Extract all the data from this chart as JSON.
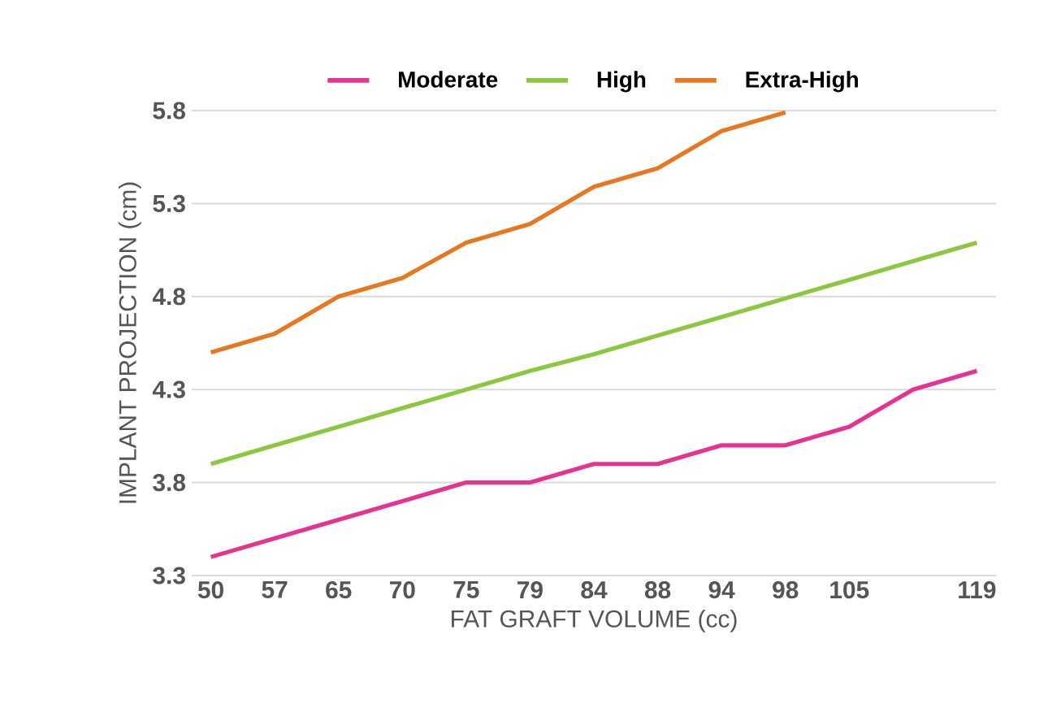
{
  "chart_data": {
    "type": "line",
    "xlabel": "FAT GRAFT VOLUME (cc)",
    "ylabel": "IMPLANT PROJECTION (cm)",
    "categories": [
      "50",
      "57",
      "65",
      "70",
      "75",
      "79",
      "84",
      "88",
      "94",
      "98",
      "105",
      null,
      "119"
    ],
    "series": [
      {
        "name": "Moderate",
        "color": "#e6338f",
        "values": [
          3.4,
          3.5,
          3.6,
          3.7,
          3.8,
          3.8,
          3.9,
          3.9,
          4.0,
          4.0,
          4.1,
          4.3,
          4.4
        ]
      },
      {
        "name": "High",
        "color": "#8dc63f",
        "values": [
          3.9,
          4.0,
          4.1,
          4.2,
          4.3,
          4.4,
          4.49,
          4.59,
          4.69,
          4.79,
          4.89,
          4.99,
          5.09
        ]
      },
      {
        "name": "Extra-High",
        "color": "#e87722",
        "values": [
          4.5,
          4.6,
          4.8,
          4.9,
          5.09,
          5.19,
          5.39,
          5.49,
          5.69,
          5.79,
          null,
          null,
          null
        ]
      }
    ],
    "ylim": [
      3.3,
      5.8
    ],
    "yticks": [
      3.3,
      3.8,
      4.3,
      4.8,
      5.3,
      5.8
    ],
    "grid": "y",
    "legend": "top",
    "marker": "none",
    "line_style": "solid"
  }
}
